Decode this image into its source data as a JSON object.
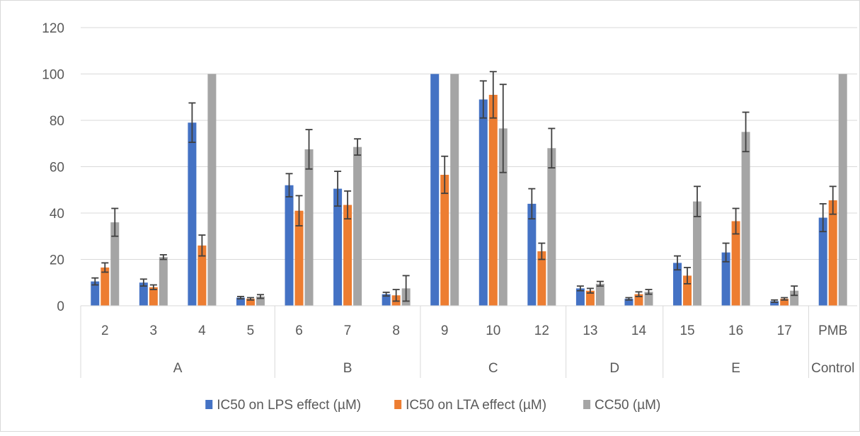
{
  "chart_data": {
    "type": "bar",
    "title": "",
    "xlabel": "",
    "ylabel": "",
    "ylim": [
      0,
      120
    ],
    "yticks": [
      0,
      20,
      40,
      60,
      80,
      100,
      120
    ],
    "grid": true,
    "legend_position": "bottom",
    "groups": [
      {
        "label": "A",
        "categories": [
          "2",
          "3",
          "4",
          "5"
        ]
      },
      {
        "label": "B",
        "categories": [
          "6",
          "7",
          "8"
        ]
      },
      {
        "label": "C",
        "categories": [
          "9",
          "10",
          "12"
        ]
      },
      {
        "label": "D",
        "categories": [
          "13",
          "14"
        ]
      },
      {
        "label": "E",
        "categories": [
          "15",
          "16",
          "17"
        ]
      },
      {
        "label": "Control",
        "categories": [
          "PMB"
        ]
      }
    ],
    "categories": [
      "2",
      "3",
      "4",
      "5",
      "6",
      "7",
      "8",
      "9",
      "10",
      "12",
      "13",
      "14",
      "15",
      "16",
      "17",
      "PMB"
    ],
    "series": [
      {
        "name": "IC50 on LPS effect (µM)",
        "color": "#4472c4",
        "values": [
          10.5,
          10,
          79,
          3.5,
          52,
          50.5,
          5,
          100,
          89,
          44,
          7.5,
          3,
          18.5,
          23,
          2,
          38
        ],
        "errors": [
          1.5,
          1.5,
          8.5,
          0.5,
          5,
          7.5,
          0.8,
          0,
          8,
          6.5,
          1,
          0.5,
          3,
          4,
          0.5,
          6
        ]
      },
      {
        "name": "IC50 on LTA effect (µM)",
        "color": "#ed7d31",
        "values": [
          16.5,
          8,
          26,
          3,
          41,
          43.5,
          4.5,
          56.5,
          91,
          23.5,
          6.5,
          5,
          13,
          36.5,
          3,
          45.5
        ],
        "errors": [
          2,
          1,
          4.5,
          0.5,
          6.5,
          6,
          2.5,
          8,
          10,
          3.5,
          1,
          1,
          3.5,
          5.5,
          0.5,
          6
        ]
      },
      {
        "name": "CC50 (µM)",
        "color": "#a5a5a5",
        "values": [
          36,
          21,
          100,
          4,
          67.5,
          68.5,
          7.5,
          100,
          76.5,
          68,
          9.5,
          6,
          45,
          75,
          6.5,
          100
        ],
        "errors": [
          6,
          1,
          0,
          0.8,
          8.5,
          3.5,
          5.5,
          0,
          19,
          8.5,
          1,
          1,
          6.5,
          8.5,
          2,
          0
        ]
      }
    ]
  }
}
